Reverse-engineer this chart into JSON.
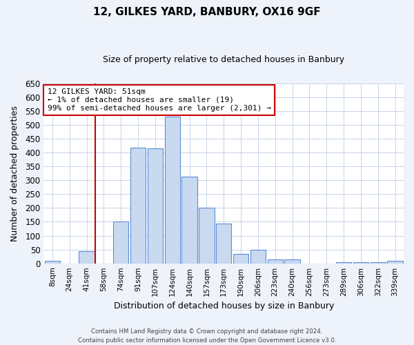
{
  "title": "12, GILKES YARD, BANBURY, OX16 9GF",
  "subtitle": "Size of property relative to detached houses in Banbury",
  "xlabel": "Distribution of detached houses by size in Banbury",
  "ylabel": "Number of detached properties",
  "bin_labels": [
    "8sqm",
    "24sqm",
    "41sqm",
    "58sqm",
    "74sqm",
    "91sqm",
    "107sqm",
    "124sqm",
    "140sqm",
    "157sqm",
    "173sqm",
    "190sqm",
    "206sqm",
    "223sqm",
    "240sqm",
    "256sqm",
    "273sqm",
    "289sqm",
    "306sqm",
    "322sqm",
    "339sqm"
  ],
  "bar_heights": [
    8,
    0,
    45,
    0,
    150,
    418,
    415,
    530,
    313,
    202,
    144,
    35,
    49,
    15,
    15,
    0,
    0,
    5,
    5,
    5,
    8
  ],
  "bar_color": "#c9d9f0",
  "bar_edge_color": "#5b8dd9",
  "vline_color": "#cc0000",
  "vline_pos": 2.5,
  "annotation_text": "12 GILKES YARD: 51sqm\n← 1% of detached houses are smaller (19)\n99% of semi-detached houses are larger (2,301) →",
  "annotation_box_color": "#ffffff",
  "annotation_box_edge": "#cc0000",
  "ylim": [
    0,
    650
  ],
  "yticks": [
    0,
    50,
    100,
    150,
    200,
    250,
    300,
    350,
    400,
    450,
    500,
    550,
    600,
    650
  ],
  "footer_line1": "Contains HM Land Registry data © Crown copyright and database right 2024.",
  "footer_line2": "Contains public sector information licensed under the Open Government Licence v3.0.",
  "background_color": "#eef2fa",
  "plot_background": "#ffffff",
  "grid_color": "#c8d4e8"
}
